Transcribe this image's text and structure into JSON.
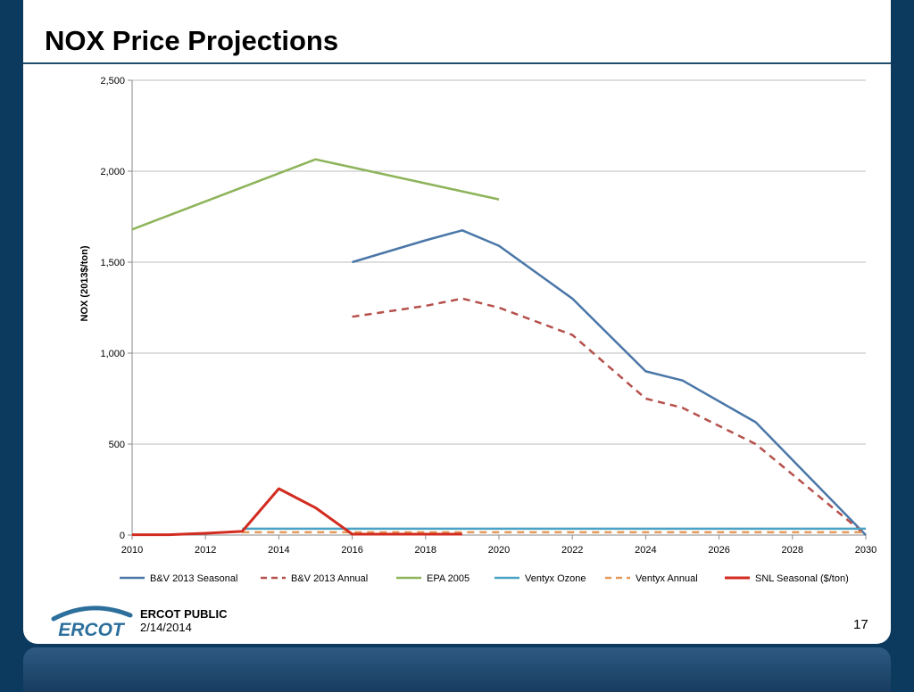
{
  "slide": {
    "title": "NOX Price Projections",
    "footer_label": "ERCOT PUBLIC",
    "footer_date": "2/14/2014",
    "page_number": "17",
    "logo_text": "ERCOT"
  },
  "chart_data": {
    "type": "line",
    "title": "",
    "xlabel": "",
    "ylabel": "NOX (2013$/ton)",
    "xlim": [
      2010,
      2030
    ],
    "ylim": [
      0,
      2500
    ],
    "x_ticks": [
      "2010",
      "2012",
      "2014",
      "2016",
      "2018",
      "2020",
      "2022",
      "2024",
      "2026",
      "2028",
      "2030"
    ],
    "y_ticks": [
      "0",
      "500",
      "1,000",
      "1,500",
      "2,000",
      "2,500"
    ],
    "grid": true,
    "legend_position": "bottom",
    "series": [
      {
        "name": "B&V 2013 Seasonal",
        "color": "#4a77a8",
        "dash": "solid",
        "points": [
          [
            2016,
            1500
          ],
          [
            2018,
            1620
          ],
          [
            2019,
            1675
          ],
          [
            2020,
            1590
          ],
          [
            2022,
            1300
          ],
          [
            2024,
            900
          ],
          [
            2025,
            850
          ],
          [
            2027,
            620
          ],
          [
            2030,
            0
          ]
        ]
      },
      {
        "name": "B&V 2013 Annual",
        "color": "#b5504b",
        "dash": "dashed",
        "points": [
          [
            2016,
            1200
          ],
          [
            2018,
            1260
          ],
          [
            2019,
            1300
          ],
          [
            2020,
            1250
          ],
          [
            2022,
            1100
          ],
          [
            2024,
            750
          ],
          [
            2025,
            700
          ],
          [
            2027,
            500
          ],
          [
            2030,
            0
          ]
        ]
      },
      {
        "name": "EPA 2005",
        "color": "#8db45a",
        "dash": "solid",
        "points": [
          [
            2010,
            1680
          ],
          [
            2015,
            2065
          ],
          [
            2020,
            1845
          ]
        ]
      },
      {
        "name": "Ventyx Ozone",
        "color": "#4aa3c4",
        "dash": "solid",
        "points": [
          [
            2013,
            35
          ],
          [
            2030,
            35
          ]
        ]
      },
      {
        "name": "Ventyx Annual",
        "color": "#e59a5a",
        "dash": "dashed",
        "points": [
          [
            2013,
            15
          ],
          [
            2030,
            15
          ]
        ]
      },
      {
        "name": "SNL Seasonal ($/ton)",
        "color": "#d22b1f",
        "dash": "thick",
        "points": [
          [
            2010,
            2
          ],
          [
            2011,
            2
          ],
          [
            2012,
            10
          ],
          [
            2013,
            20
          ],
          [
            2014,
            255
          ],
          [
            2015,
            150
          ],
          [
            2016,
            5
          ],
          [
            2019,
            5
          ]
        ]
      }
    ]
  }
}
